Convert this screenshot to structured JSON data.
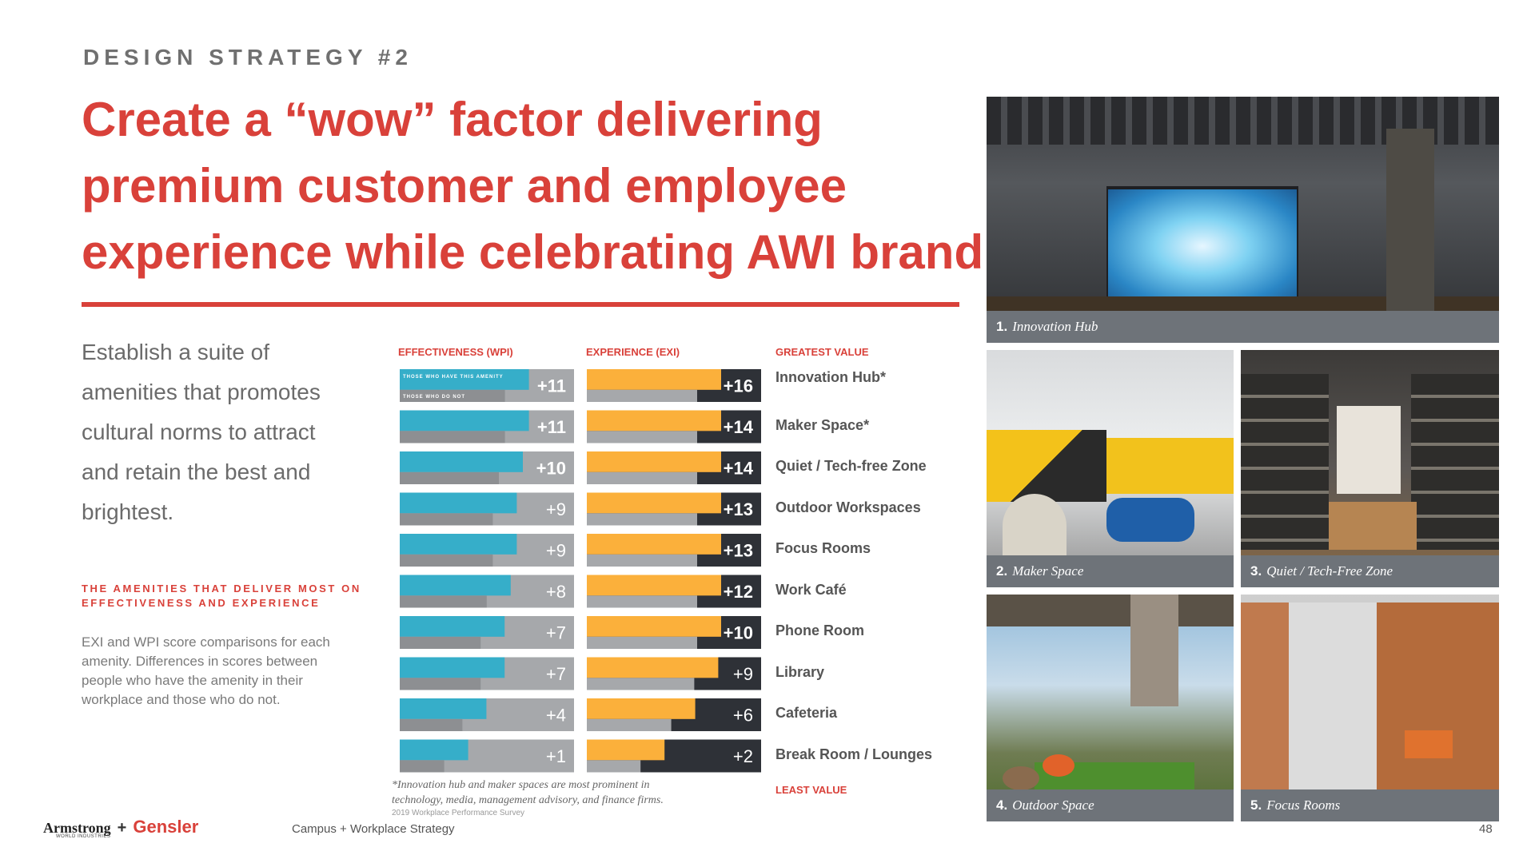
{
  "header": {
    "kicker": "DESIGN STRATEGY #2",
    "headline": [
      "Create a “wow” factor delivering",
      "premium customer and employee",
      "experience while celebrating AWI brand"
    ]
  },
  "intro": {
    "lines": [
      "Establish a suite of",
      "amenities that promotes",
      "cultural norms to attract",
      "and retain the best and",
      "brightest."
    ]
  },
  "subheading": [
    "THE AMENITIES THAT DELIVER MOST ON",
    "EFFECTIVENESS AND EXPERIENCE"
  ],
  "description": [
    "EXI and WPI score comparisons for each",
    "amenity. Differences in scores between",
    "people who have the amenity in their",
    "workplace and those who do not."
  ],
  "chart_data": {
    "type": "bar",
    "columns": [
      "EFFECTIVENESS (WPI)",
      "EXPERIENCE (EXI)"
    ],
    "greatest_label": "GREATEST VALUE",
    "least_label": "LEAST VALUE",
    "legend": [
      "THOSE WHO HAVE THIS AMENITY",
      "THOSE WHO DO NOT"
    ],
    "categories": [
      "Innovation Hub*",
      "Maker Space*",
      "Quiet / Tech-free Zone",
      "Outdoor Workspaces",
      "Focus Rooms",
      "Work Café",
      "Phone Room",
      "Library",
      "Cafeteria",
      "Break Room / Lounges"
    ],
    "series": [
      {
        "name": "EFFECTIVENESS (WPI)",
        "values": [
          11,
          11,
          10,
          9,
          9,
          8,
          7,
          7,
          4,
          1
        ],
        "labels": [
          "+11",
          "+11",
          "+10",
          "+9",
          "+9",
          "+8",
          "+7",
          "+7",
          "+4",
          "+1"
        ]
      },
      {
        "name": "EXPERIENCE (EXI)",
        "values": [
          16,
          14,
          14,
          13,
          13,
          12,
          10,
          9,
          6,
          2
        ],
        "labels": [
          "+16",
          "+14",
          "+14",
          "+13",
          "+13",
          "+12",
          "+10",
          "+9",
          "+6",
          "+2"
        ]
      }
    ],
    "colors": {
      "wpi_have": "#36aec9",
      "wpi_not": "#a6a8ab",
      "exi_have": "#fbb03b",
      "exi_not": "#2e3137"
    }
  },
  "footnote": [
    "*Innovation hub and maker spaces are most prominent in",
    "technology, media, management advisory, and finance firms."
  ],
  "source": "2019 Workplace Performance Survey",
  "photos": [
    {
      "num": "1.",
      "label": "Innovation Hub"
    },
    {
      "num": "2.",
      "label": "Maker Space"
    },
    {
      "num": "3.",
      "label": "Quiet / Tech-Free Zone"
    },
    {
      "num": "4.",
      "label": "Outdoor Space"
    },
    {
      "num": "5.",
      "label": "Focus Rooms"
    }
  ],
  "footer": {
    "logo_armstrong": "Armstrong",
    "logo_armstrong_sub": "WORLD INDUSTRIES",
    "logo_plus": "+",
    "logo_gensler": "Gensler",
    "label": "Campus + Workplace Strategy",
    "page": "48"
  }
}
